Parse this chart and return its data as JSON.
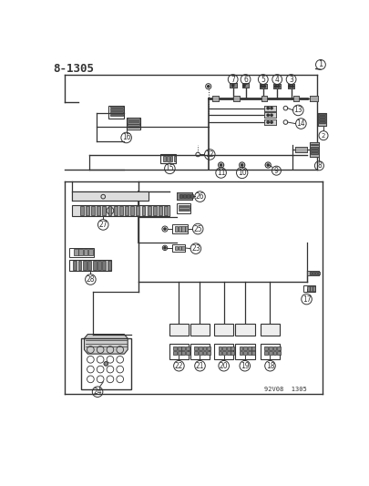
{
  "title": "8-1305",
  "watermark": "92V08  1305",
  "bg_color": "#ffffff",
  "line_color": "#333333",
  "fig_width": 4.05,
  "fig_height": 5.33,
  "dpi": 100
}
